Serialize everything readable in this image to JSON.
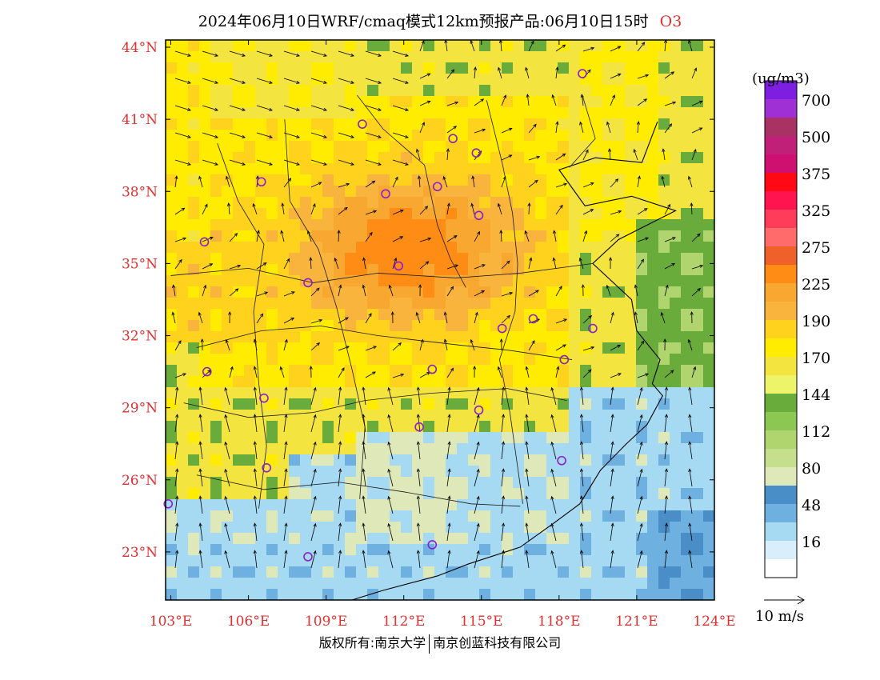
{
  "title": {
    "text": "2024年06月10日WRF/cmaq模式12km预报产品:06月10日15时",
    "species": "O3"
  },
  "legend": {
    "unit": "(ug/m3)",
    "bins": [
      {
        "label": "",
        "color": "#ffffff"
      },
      {
        "label": "16",
        "color": "#d8eefa"
      },
      {
        "label": "",
        "color": "#a6d9f2"
      },
      {
        "label": "48",
        "color": "#6eb0e0"
      },
      {
        "label": "",
        "color": "#4a8ec8"
      },
      {
        "label": "80",
        "color": "#dfe8b8"
      },
      {
        "label": "",
        "color": "#c6df8c"
      },
      {
        "label": "112",
        "color": "#b0d46e"
      },
      {
        "label": "",
        "color": "#8cc653"
      },
      {
        "label": "144",
        "color": "#6aac3c"
      },
      {
        "label": "",
        "color": "#eef46a"
      },
      {
        "label": "170",
        "color": "#f4e440"
      },
      {
        "label": "",
        "color": "#ffec00"
      },
      {
        "label": "190",
        "color": "#ffd21e"
      },
      {
        "label": "",
        "color": "#f8b43c"
      },
      {
        "label": "225",
        "color": "#f8a830"
      },
      {
        "label": "",
        "color": "#ff8c14"
      },
      {
        "label": "275",
        "color": "#f0602a"
      },
      {
        "label": "",
        "color": "#ff6a6a"
      },
      {
        "label": "325",
        "color": "#ff3c5a"
      },
      {
        "label": "",
        "color": "#ff1450"
      },
      {
        "label": "375",
        "color": "#ff0a14"
      },
      {
        "label": "",
        "color": "#d01070"
      },
      {
        "label": "500",
        "color": "#c02078"
      },
      {
        "label": "",
        "color": "#a83264"
      },
      {
        "label": "700",
        "color": "#9f30d6"
      },
      {
        "label": "",
        "color": "#7e1ee0"
      }
    ],
    "vector_label": "10 m/s"
  },
  "axes": {
    "lon_ticks": [
      "103°E",
      "106°E",
      "109°E",
      "112°E",
      "115°E",
      "118°E",
      "121°E",
      "124°E"
    ],
    "lat_ticks": [
      "44°N",
      "41°N",
      "38°N",
      "35°N",
      "32°N",
      "29°N",
      "26°N",
      "23°N"
    ],
    "lon_range": [
      102.8,
      124
    ],
    "lat_range": [
      21,
      44.3
    ]
  },
  "stations": [
    {
      "lon": 118.9,
      "lat": 42.9
    },
    {
      "lon": 110.4,
      "lat": 40.8
    },
    {
      "lon": 113.9,
      "lat": 40.2
    },
    {
      "lon": 114.8,
      "lat": 39.6
    },
    {
      "lon": 106.5,
      "lat": 38.4
    },
    {
      "lon": 111.3,
      "lat": 37.9
    },
    {
      "lon": 113.3,
      "lat": 38.2
    },
    {
      "lon": 114.9,
      "lat": 37.0
    },
    {
      "lon": 104.3,
      "lat": 35.9
    },
    {
      "lon": 111.8,
      "lat": 34.9
    },
    {
      "lon": 108.3,
      "lat": 34.2
    },
    {
      "lon": 115.8,
      "lat": 32.3
    },
    {
      "lon": 117.0,
      "lat": 32.7
    },
    {
      "lon": 119.3,
      "lat": 32.3
    },
    {
      "lon": 118.2,
      "lat": 31.0
    },
    {
      "lon": 104.4,
      "lat": 30.5
    },
    {
      "lon": 113.1,
      "lat": 30.6
    },
    {
      "lon": 106.6,
      "lat": 29.4
    },
    {
      "lon": 114.9,
      "lat": 28.9
    },
    {
      "lon": 112.6,
      "lat": 28.2
    },
    {
      "lon": 106.7,
      "lat": 26.5
    },
    {
      "lon": 118.1,
      "lat": 26.8
    },
    {
      "lon": 102.9,
      "lat": 25.0
    },
    {
      "lon": 113.1,
      "lat": 23.3
    },
    {
      "lon": 108.3,
      "lat": 22.8
    }
  ],
  "footer": {
    "left": "版权所有:南京大学",
    "right": "南京创蓝科技有限公司"
  }
}
